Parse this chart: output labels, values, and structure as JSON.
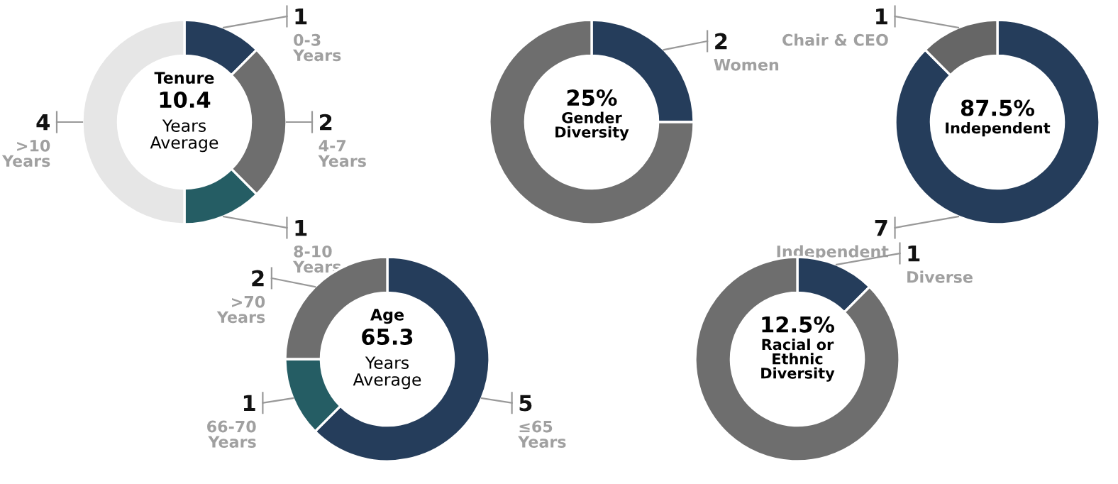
{
  "chart_data": [
    {
      "type": "donut",
      "title": "Tenure",
      "annotations": [
        "10.4",
        "Years\nAverage"
      ],
      "categories": [
        "0-3\nYears",
        "4-7\nYears",
        "8-10\nYears",
        ">10\nYears"
      ],
      "values": [
        1,
        2,
        1,
        4
      ],
      "value_labels": [
        "1",
        "2",
        "1",
        "4"
      ],
      "colors": [
        "#253d5b",
        "#6e6e6e",
        "#255d64",
        "#e6e6e6"
      ]
    },
    {
      "type": "donut",
      "title": "Gender\nDiversity",
      "annotations": [
        "25%"
      ],
      "categories": [
        "Women",
        null
      ],
      "values": [
        2,
        6
      ],
      "value_labels": [
        "2",
        null
      ],
      "colors": [
        "#253d5b",
        "#6e6e6e"
      ]
    },
    {
      "type": "donut",
      "title": "Independent",
      "annotations": [
        "87.5%"
      ],
      "categories": [
        "Independent",
        "Chair & CEO"
      ],
      "values": [
        7,
        1
      ],
      "value_labels": [
        "7",
        "1"
      ],
      "colors": [
        "#253d5b",
        "#666666"
      ]
    },
    {
      "type": "donut",
      "title": "Age",
      "annotations": [
        "65.3",
        "Years\nAverage"
      ],
      "categories": [
        "≤65\nYears",
        "66-70\nYears",
        ">70\nYears"
      ],
      "values": [
        5,
        1,
        2
      ],
      "value_labels": [
        "5",
        "1",
        "2"
      ],
      "colors": [
        "#253d5b",
        "#255d64",
        "#6e6e6e"
      ]
    },
    {
      "type": "donut",
      "title": "Racial or\nEthnic\nDiversity",
      "annotations": [
        "12.5%"
      ],
      "categories": [
        "Diverse",
        null
      ],
      "values": [
        1,
        7
      ],
      "value_labels": [
        "1",
        null
      ],
      "colors": [
        "#253d5b",
        "#6e6e6e"
      ]
    }
  ]
}
